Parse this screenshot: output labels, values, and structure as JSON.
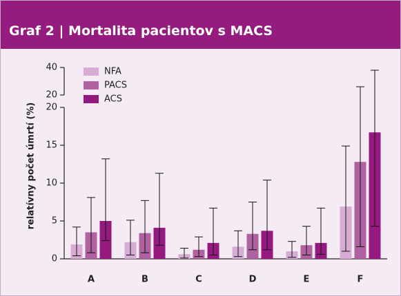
{
  "chart_data": {
    "type": "bar",
    "title": "Graf 2 | Mortalita pacientov s MACS",
    "y_label": "relatívny počet úmrtí (%)",
    "categories": [
      "A",
      "B",
      "C",
      "D",
      "E",
      "F"
    ],
    "series": [
      {
        "name": "NFA",
        "color": "#d6abd4",
        "values": [
          1.9,
          2.2,
          0.6,
          1.6,
          1.0,
          6.9
        ],
        "lower": [
          0.4,
          0.5,
          0.1,
          0.3,
          0.2,
          1.0
        ],
        "upper": [
          4.2,
          5.1,
          1.4,
          3.7,
          2.3,
          14.9
        ]
      },
      {
        "name": "PACS",
        "color": "#b0619f",
        "values": [
          3.5,
          3.4,
          1.2,
          3.3,
          1.8,
          12.8
        ],
        "lower": [
          0.8,
          0.8,
          0.3,
          1.2,
          0.5,
          1.6
        ],
        "upper": [
          8.1,
          7.7,
          2.9,
          7.5,
          4.3,
          26
        ]
      },
      {
        "name": "ACS",
        "color": "#951a7f",
        "values": [
          5.0,
          4.1,
          2.1,
          3.7,
          2.1,
          16.7
        ],
        "lower": [
          2.4,
          1.8,
          0.5,
          1.2,
          0.6,
          4.3
        ],
        "upper": [
          13.2,
          11.3,
          6.7,
          10.4,
          6.7,
          38
        ]
      }
    ],
    "ylim": [
      0,
      20
    ],
    "yticks": [
      0,
      5,
      10,
      15,
      20
    ],
    "ylim_upper": [
      20,
      40
    ],
    "yticks_upper": [
      20,
      40
    ],
    "legend": "top-left"
  }
}
